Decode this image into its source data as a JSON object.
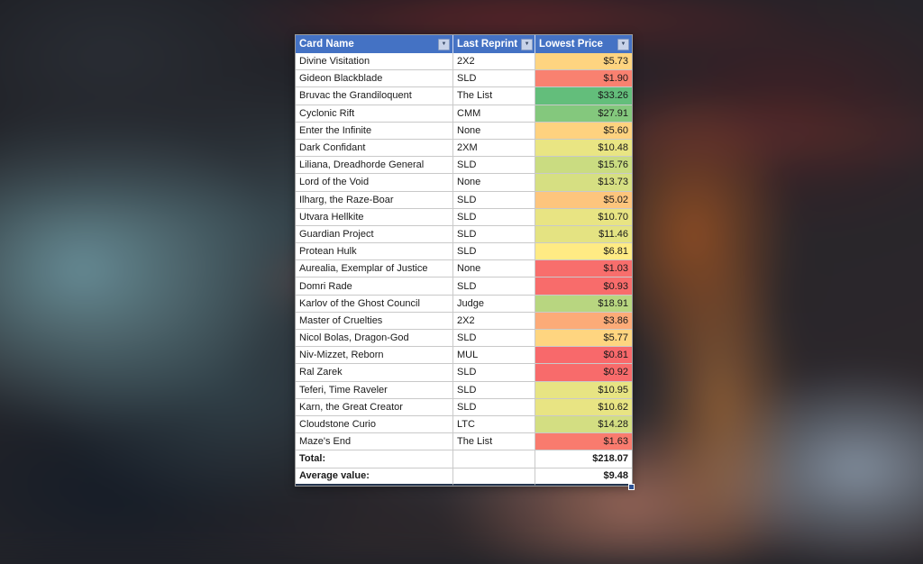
{
  "table": {
    "columns": [
      {
        "label": "Card Name"
      },
      {
        "label": "Last Reprint"
      },
      {
        "label": "Lowest Price"
      }
    ],
    "rows": [
      {
        "name": "Divine Visitation",
        "reprint": "2X2",
        "price": "$5.73",
        "price_color": "#FED480"
      },
      {
        "name": "Gideon Blackblade",
        "reprint": "SLD",
        "price": "$1.90",
        "price_color": "#F98170"
      },
      {
        "name": "Bruvac the Grandiloquent",
        "reprint": "The List",
        "price": "$33.26",
        "price_color": "#63BE7B"
      },
      {
        "name": "Cyclonic Rift",
        "reprint": "CMM",
        "price": "$27.91",
        "price_color": "#84C87D"
      },
      {
        "name": "Enter the Infinite",
        "reprint": "None",
        "price": "$5.60",
        "price_color": "#FED27F"
      },
      {
        "name": "Dark Confidant",
        "reprint": "2XM",
        "price": "$10.48",
        "price_color": "#E9E583"
      },
      {
        "name": "Liliana, Dreadhorde General",
        "reprint": "SLD",
        "price": "$15.76",
        "price_color": "#CADC81"
      },
      {
        "name": "Lord of the Void",
        "reprint": "None",
        "price": "$13.73",
        "price_color": "#D6DF82"
      },
      {
        "name": "Ilharg, the Raze-Boar",
        "reprint": "SLD",
        "price": "$5.02",
        "price_color": "#FDC57D"
      },
      {
        "name": "Utvara Hellkite",
        "reprint": "SLD",
        "price": "$10.70",
        "price_color": "#E8E483"
      },
      {
        "name": "Guardian Project",
        "reprint": "SLD",
        "price": "$11.46",
        "price_color": "#E4E382"
      },
      {
        "name": "Protean Hulk",
        "reprint": "SLD",
        "price": "$6.81",
        "price_color": "#FFEB84"
      },
      {
        "name": "Aurealia, Exemplar of Justice",
        "reprint": "None",
        "price": "$1.03",
        "price_color": "#F86E6C"
      },
      {
        "name": "Domri Rade",
        "reprint": "SLD",
        "price": "$0.93",
        "price_color": "#F86C6B"
      },
      {
        "name": "Karlov of the Ghost Council",
        "reprint": "Judge",
        "price": "$18.91",
        "price_color": "#B8D680"
      },
      {
        "name": "Master of Cruelties",
        "reprint": "2X2",
        "price": "$3.86",
        "price_color": "#FCAB78"
      },
      {
        "name": "Nicol Bolas, Dragon-God",
        "reprint": "SLD",
        "price": "$5.77",
        "price_color": "#FED580"
      },
      {
        "name": "Niv-Mizzet, Reborn",
        "reprint": "MUL",
        "price": "$0.81",
        "price_color": "#F8696B"
      },
      {
        "name": "Ral Zarek",
        "reprint": "SLD",
        "price": "$0.92",
        "price_color": "#F86B6B"
      },
      {
        "name": "Teferi, Time Raveler",
        "reprint": "SLD",
        "price": "$10.95",
        "price_color": "#E7E483"
      },
      {
        "name": "Karn, the Great Creator",
        "reprint": "SLD",
        "price": "$10.62",
        "price_color": "#E8E483"
      },
      {
        "name": "Cloudstone Curio",
        "reprint": "LTC",
        "price": "$14.28",
        "price_color": "#D3DE82"
      },
      {
        "name": "Maze's End",
        "reprint": "The List",
        "price": "$1.63",
        "price_color": "#F97B6E"
      }
    ],
    "summary": [
      {
        "label": "Total:",
        "value": "$218.07"
      },
      {
        "label": "Average value:",
        "value": "$9.48"
      }
    ]
  },
  "icons": {
    "filter_arrow": "▼"
  },
  "colors": {
    "header_bg": "#4472C4",
    "header_text": "#FFFFFF",
    "grid_line": "#C9C9C9",
    "cell_bg": "#FFFFFF",
    "fill_handle": "#2F5496",
    "price_scale_min": "#F8696B",
    "price_scale_mid": "#FFEB84",
    "price_scale_max": "#63BE7B"
  }
}
